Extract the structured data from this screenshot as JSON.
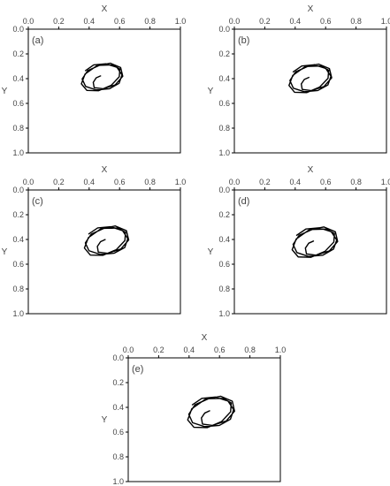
{
  "chart_data": [
    {
      "type": "line",
      "panel_label": "(a)",
      "xlabel": "X",
      "ylabel": "Y",
      "xlim": [
        0.0,
        1.0
      ],
      "ylim": [
        0.0,
        1.0
      ],
      "y_inverted": true,
      "x_axis_position": "top",
      "x_ticks": [
        "0.0",
        "0.2",
        "0.4",
        "0.6",
        "0.8",
        "1.0"
      ],
      "y_ticks": [
        "0.0",
        "0.2",
        "0.4",
        "0.6",
        "0.8",
        "1.0"
      ],
      "grid": false,
      "series": [
        {
          "values": {
            "x": [
              0.475,
              0.446,
              0.427,
              0.433,
              0.491,
              0.572,
              0.621,
              0.607,
              0.539,
              0.449,
              0.373,
              0.349,
              0.385,
              0.461,
              0.545,
              0.598,
              0.602,
              0.553,
              0.469,
              0.391,
              0.354,
              0.377,
              0.446,
              0.533,
              0.597,
              0.616,
              0.583,
              0.51,
              0.43,
              0.376
            ],
            "y": [
              0.378,
              0.394,
              0.43,
              0.473,
              0.482,
              0.45,
              0.381,
              0.31,
              0.275,
              0.297,
              0.363,
              0.442,
              0.495,
              0.498,
              0.454,
              0.385,
              0.322,
              0.289,
              0.292,
              0.335,
              0.403,
              0.463,
              0.491,
              0.482,
              0.438,
              0.37,
              0.309,
              0.28,
              0.289,
              0.335
            ]
          }
        }
      ]
    },
    {
      "type": "line",
      "panel_label": "(b)",
      "xlabel": "X",
      "ylabel": "Y",
      "xlim": [
        0.0,
        1.0
      ],
      "ylim": [
        0.0,
        1.0
      ],
      "y_inverted": true,
      "x_axis_position": "top",
      "x_ticks": [
        "0.0",
        "0.2",
        "0.4",
        "0.6",
        "0.8",
        "1.0"
      ],
      "y_ticks": [
        "0.0",
        "0.2",
        "0.4",
        "0.6",
        "0.8",
        "1.0"
      ],
      "grid": false,
      "series": [
        {
          "values": {
            "x": [
              0.49,
              0.46,
              0.44,
              0.446,
              0.506,
              0.589,
              0.64,
              0.625,
              0.555,
              0.462,
              0.384,
              0.359,
              0.396,
              0.475,
              0.561,
              0.616,
              0.62,
              0.57,
              0.483,
              0.403,
              0.365,
              0.388,
              0.46,
              0.549,
              0.615,
              0.635,
              0.601,
              0.525,
              0.443,
              0.387
            ],
            "y": [
              0.39,
              0.406,
              0.443,
              0.487,
              0.497,
              0.464,
              0.393,
              0.319,
              0.283,
              0.306,
              0.374,
              0.455,
              0.51,
              0.513,
              0.468,
              0.397,
              0.332,
              0.298,
              0.301,
              0.345,
              0.415,
              0.477,
              0.506,
              0.496,
              0.451,
              0.381,
              0.318,
              0.288,
              0.298,
              0.345
            ]
          }
        }
      ]
    },
    {
      "type": "line",
      "panel_label": "(c)",
      "xlabel": "X",
      "ylabel": "Y",
      "xlim": [
        0.0,
        1.0
      ],
      "ylim": [
        0.0,
        1.0
      ],
      "y_inverted": true,
      "x_axis_position": "top",
      "x_ticks": [
        "0.0",
        "0.2",
        "0.4",
        "0.6",
        "0.8",
        "1.0"
      ],
      "y_ticks": [
        "0.0",
        "0.2",
        "0.4",
        "0.6",
        "0.8",
        "1.0"
      ],
      "grid": false,
      "series": [
        {
          "values": {
            "x": [
              0.505,
              0.475,
              0.454,
              0.46,
              0.522,
              0.608,
              0.66,
              0.645,
              0.572,
              0.476,
              0.395,
              0.369,
              0.408,
              0.49,
              0.579,
              0.635,
              0.639,
              0.587,
              0.498,
              0.414,
              0.375,
              0.399,
              0.473,
              0.565,
              0.634,
              0.654,
              0.619,
              0.541,
              0.456,
              0.398
            ],
            "y": [
              0.401,
              0.418,
              0.456,
              0.502,
              0.512,
              0.477,
              0.404,
              0.329,
              0.291,
              0.315,
              0.385,
              0.469,
              0.526,
              0.528,
              0.482,
              0.409,
              0.342,
              0.307,
              0.31,
              0.356,
              0.428,
              0.491,
              0.521,
              0.511,
              0.465,
              0.393,
              0.328,
              0.297,
              0.307,
              0.355
            ]
          }
        }
      ]
    },
    {
      "type": "line",
      "panel_label": "(d)",
      "xlabel": "X",
      "ylabel": "Y",
      "xlim": [
        0.0,
        1.0
      ],
      "ylim": [
        0.0,
        1.0
      ],
      "y_inverted": true,
      "x_axis_position": "top",
      "x_ticks": [
        "0.0",
        "0.2",
        "0.4",
        "0.6",
        "0.8",
        "1.0"
      ],
      "y_ticks": [
        "0.0",
        "0.2",
        "0.4",
        "0.6",
        "0.8",
        "1.0"
      ],
      "grid": false,
      "series": [
        {
          "values": {
            "x": [
              0.52,
              0.489,
              0.467,
              0.474,
              0.537,
              0.625,
              0.679,
              0.664,
              0.589,
              0.49,
              0.406,
              0.38,
              0.42,
              0.504,
              0.596,
              0.654,
              0.658,
              0.605,
              0.513,
              0.426,
              0.386,
              0.411,
              0.487,
              0.582,
              0.652,
              0.673,
              0.637,
              0.557,
              0.47,
              0.41
            ],
            "y": [
              0.413,
              0.43,
              0.47,
              0.517,
              0.527,
              0.492,
              0.416,
              0.338,
              0.299,
              0.324,
              0.397,
              0.483,
              0.541,
              0.544,
              0.496,
              0.421,
              0.352,
              0.316,
              0.319,
              0.366,
              0.44,
              0.506,
              0.537,
              0.527,
              0.478,
              0.404,
              0.337,
              0.306,
              0.316,
              0.366
            ]
          }
        }
      ]
    },
    {
      "type": "line",
      "panel_label": "(e)",
      "xlabel": "X",
      "ylabel": "Y",
      "xlim": [
        0.0,
        1.0
      ],
      "ylim": [
        0.0,
        1.0
      ],
      "y_inverted": true,
      "x_axis_position": "top",
      "x_ticks": [
        "0.0",
        "0.2",
        "0.4",
        "0.6",
        "0.8",
        "1.0"
      ],
      "y_ticks": [
        "0.0",
        "0.2",
        "0.4",
        "0.6",
        "0.8",
        "1.0"
      ],
      "grid": false,
      "series": [
        {
          "values": {
            "x": [
              0.535,
              0.503,
              0.481,
              0.488,
              0.553,
              0.644,
              0.699,
              0.684,
              0.607,
              0.505,
              0.418,
              0.391,
              0.432,
              0.519,
              0.614,
              0.673,
              0.677,
              0.623,
              0.528,
              0.439,
              0.398,
              0.423,
              0.502,
              0.599,
              0.672,
              0.693,
              0.656,
              0.574,
              0.484,
              0.422
            ],
            "y": [
              0.428,
              0.446,
              0.486,
              0.535,
              0.546,
              0.51,
              0.431,
              0.35,
              0.31,
              0.336,
              0.411,
              0.501,
              0.561,
              0.564,
              0.514,
              0.436,
              0.364,
              0.327,
              0.33,
              0.379,
              0.456,
              0.524,
              0.556,
              0.546,
              0.496,
              0.419,
              0.349,
              0.317,
              0.327,
              0.379
            ]
          }
        }
      ]
    }
  ]
}
